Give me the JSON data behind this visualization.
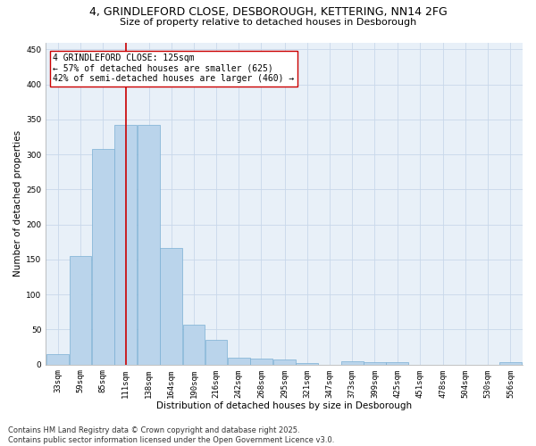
{
  "title": "4, GRINDLEFORD CLOSE, DESBOROUGH, KETTERING, NN14 2FG",
  "subtitle": "Size of property relative to detached houses in Desborough",
  "xlabel": "Distribution of detached houses by size in Desborough",
  "ylabel": "Number of detached properties",
  "bar_color": "#bad4eb",
  "bar_edge_color": "#7aafd4",
  "grid_color": "#c8d8ea",
  "background_color": "#e8f0f8",
  "property_line_x": 124.5,
  "property_line_color": "#cc0000",
  "annotation_text": "4 GRINDLEFORD CLOSE: 125sqm\n← 57% of detached houses are smaller (625)\n42% of semi-detached houses are larger (460) →",
  "annotation_box_color": "#ffffff",
  "annotation_box_edge": "#cc0000",
  "categories": [
    "33sqm",
    "59sqm",
    "85sqm",
    "111sqm",
    "138sqm",
    "164sqm",
    "190sqm",
    "216sqm",
    "242sqm",
    "268sqm",
    "295sqm",
    "321sqm",
    "347sqm",
    "373sqm",
    "399sqm",
    "425sqm",
    "451sqm",
    "478sqm",
    "504sqm",
    "530sqm",
    "556sqm"
  ],
  "bin_edges": [
    33,
    59,
    85,
    111,
    138,
    164,
    190,
    216,
    242,
    268,
    295,
    321,
    347,
    373,
    399,
    425,
    451,
    478,
    504,
    530,
    556
  ],
  "bin_width": 26,
  "values": [
    15,
    155,
    308,
    342,
    342,
    167,
    57,
    35,
    10,
    9,
    7,
    2,
    0,
    5,
    4,
    4,
    0,
    0,
    0,
    0,
    3
  ],
  "ylim": [
    0,
    460
  ],
  "yticks": [
    0,
    50,
    100,
    150,
    200,
    250,
    300,
    350,
    400,
    450
  ],
  "footer_text": "Contains HM Land Registry data © Crown copyright and database right 2025.\nContains public sector information licensed under the Open Government Licence v3.0.",
  "title_fontsize": 9,
  "subtitle_fontsize": 8,
  "axis_label_fontsize": 7.5,
  "tick_fontsize": 6.5,
  "footer_fontsize": 6,
  "annotation_fontsize": 7
}
